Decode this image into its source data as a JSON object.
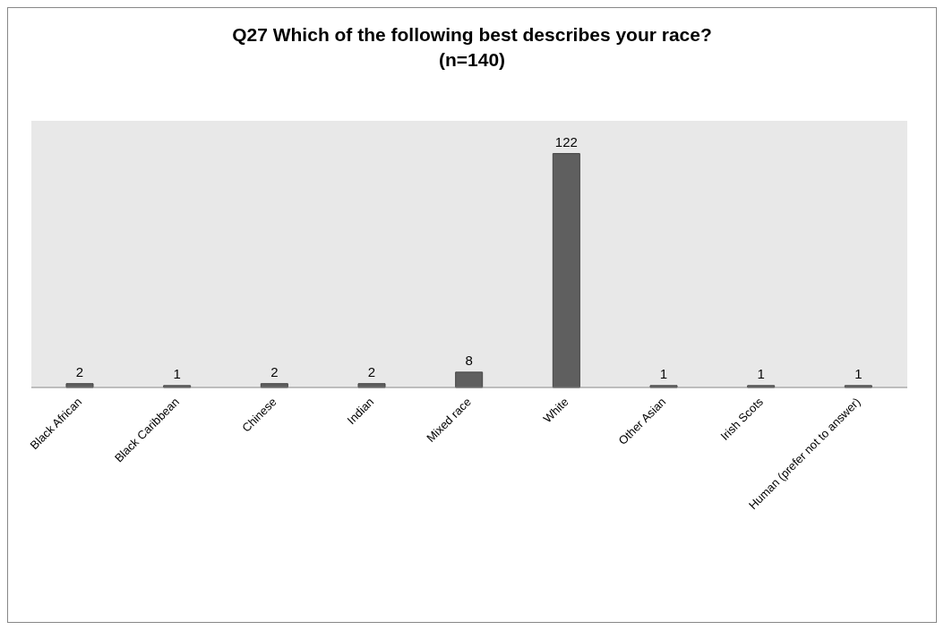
{
  "chart_data": {
    "type": "bar",
    "title": "Q27 Which of the following best describes your race? (n=140)",
    "categories": [
      "Black African",
      "Black Caribbean",
      "Chinese",
      "Indian",
      "Mixed race",
      "White",
      "Other Asian",
      "Irish Scots",
      "Human (prefer not to answer)"
    ],
    "values": [
      2,
      1,
      2,
      2,
      8,
      122,
      1,
      1,
      1
    ],
    "color": "#5f5f5f",
    "data_labels": true,
    "grid": false
  }
}
